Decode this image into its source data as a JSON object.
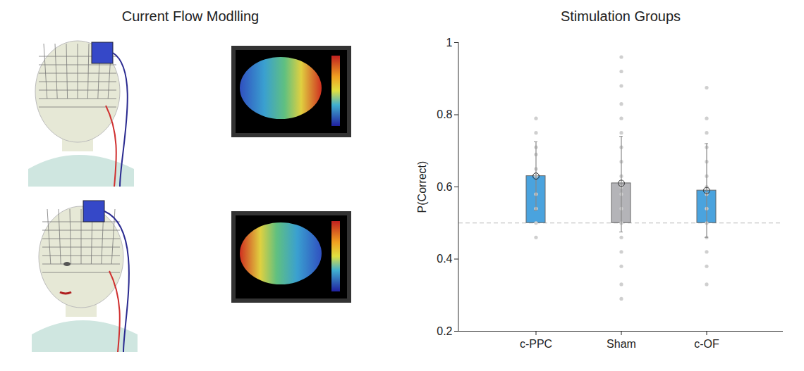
{
  "illustration": {
    "title": "Current Flow Modlling"
  },
  "chart_data": {
    "type": "bar",
    "title": "Stimulation Groups",
    "categories": [
      "c-PPC",
      "Sham",
      "c-OF"
    ],
    "values": [
      0.63,
      0.61,
      0.59
    ],
    "baseline": 0.5,
    "colors": [
      "#4aa3de",
      "#b4b4b8",
      "#4aa3de"
    ],
    "error_low": [
      0.535,
      0.475,
      0.46
    ],
    "error_high": [
      0.725,
      0.74,
      0.72
    ],
    "points": [
      [
        0.79,
        0.75,
        0.71,
        0.69,
        0.65,
        0.63,
        0.58,
        0.54,
        0.5,
        0.46
      ],
      [
        0.96,
        0.92,
        0.88,
        0.83,
        0.79,
        0.75,
        0.71,
        0.67,
        0.63,
        0.6,
        0.58,
        0.54,
        0.5,
        0.46,
        0.42,
        0.38,
        0.33,
        0.29
      ],
      [
        0.875,
        0.79,
        0.75,
        0.71,
        0.67,
        0.63,
        0.6,
        0.58,
        0.54,
        0.5,
        0.46,
        0.42,
        0.38,
        0.33
      ]
    ],
    "y_label": "P(Correct)",
    "ylim": [
      0.2,
      1
    ],
    "yticks": [
      0.2,
      0.4,
      0.6,
      0.8,
      1
    ],
    "grid": false
  }
}
